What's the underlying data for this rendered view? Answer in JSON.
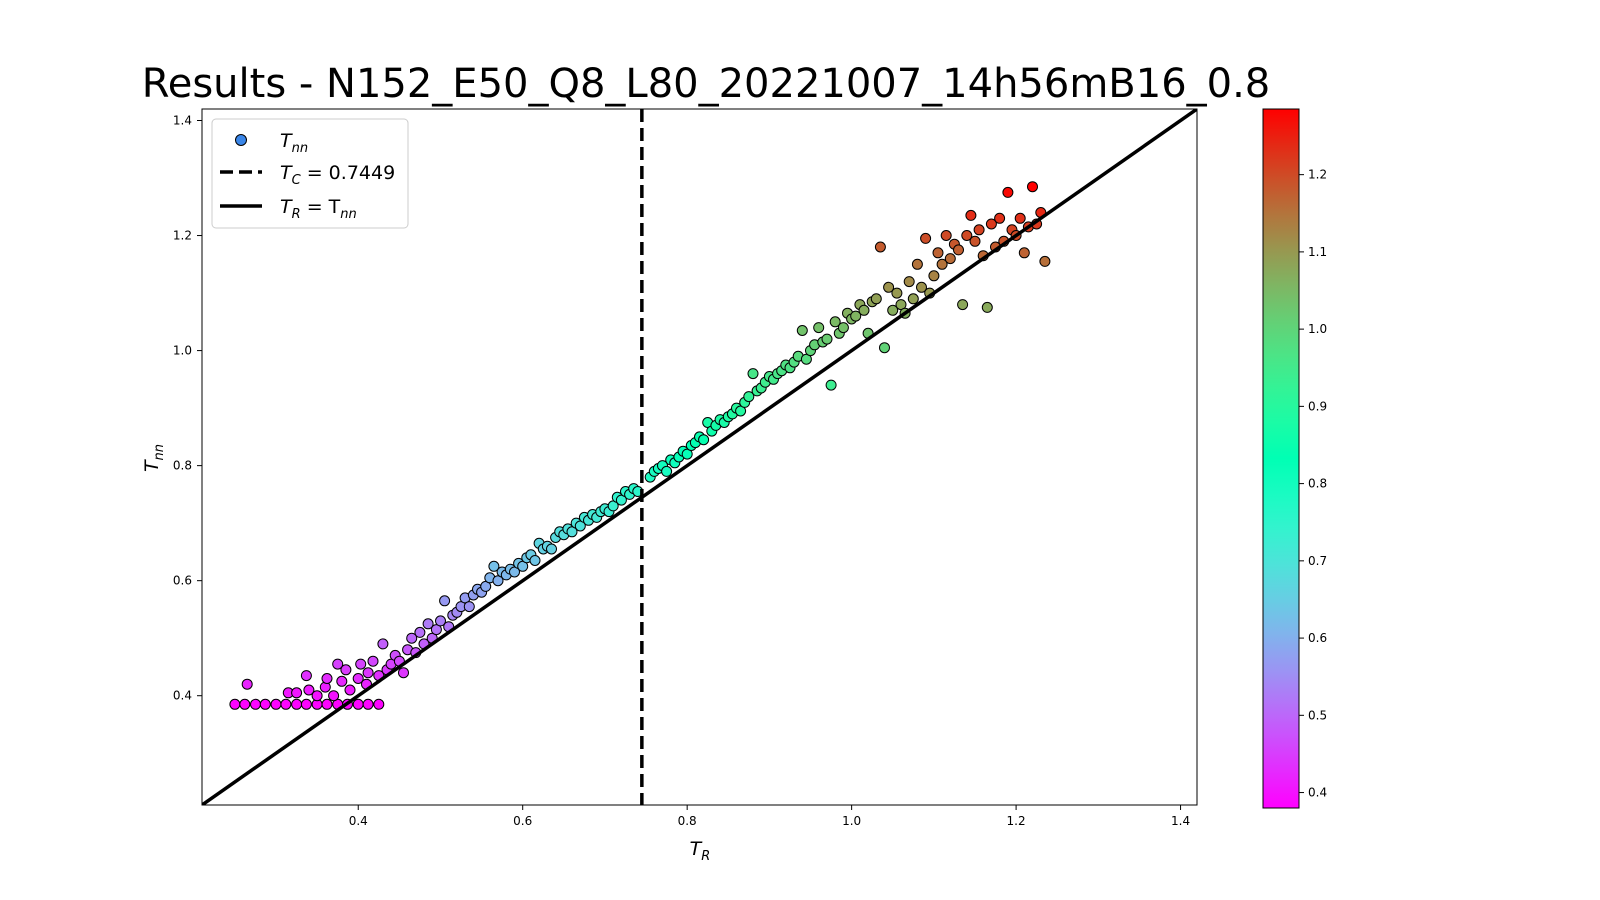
{
  "chart_data": {
    "type": "scatter",
    "title": "Results - N152_E50_Q8_L80_20221007_14h56mB16_0.8",
    "xlabel": "T_R",
    "ylabel": "T_nn",
    "xlim": [
      0.21,
      1.42
    ],
    "ylim": [
      0.21,
      1.42
    ],
    "x_ticks": [
      "0.4",
      "0.6",
      "0.8",
      "1.0",
      "1.2",
      "1.4"
    ],
    "y_ticks": [
      "0.4",
      "0.6",
      "0.8",
      "1.0",
      "1.2",
      "1.4"
    ],
    "colorbar": {
      "colormap": "rainbow",
      "range": [
        0.38,
        1.285
      ],
      "ticks": [
        "0.4",
        "0.5",
        "0.6",
        "0.7",
        "0.8",
        "0.9",
        "1.0",
        "1.1",
        "1.2"
      ]
    },
    "legend": {
      "placement": "top-left",
      "entries": [
        {
          "label_main": "T",
          "label_sub": "nn",
          "label_rest": "",
          "marker": "circle",
          "color": "#3a86e8"
        },
        {
          "label_main": "T",
          "label_sub": "C",
          "label_rest": " = 0.7449",
          "marker": "dashed-line",
          "color": "#000000"
        },
        {
          "label_main": "T",
          "label_sub": "R",
          "label_rest": " = T",
          "label_sub2": "nn",
          "marker": "solid-line",
          "color": "#000000"
        }
      ]
    },
    "critical_temperature": 0.7449,
    "reference_line": "T_R = T_nn",
    "series": [
      {
        "points": [
          [
            0.25,
            0.385
          ],
          [
            0.262,
            0.385
          ],
          [
            0.275,
            0.385
          ],
          [
            0.287,
            0.385
          ],
          [
            0.3,
            0.385
          ],
          [
            0.312,
            0.385
          ],
          [
            0.325,
            0.385
          ],
          [
            0.337,
            0.385
          ],
          [
            0.35,
            0.385
          ],
          [
            0.362,
            0.385
          ],
          [
            0.375,
            0.385
          ],
          [
            0.387,
            0.385
          ],
          [
            0.4,
            0.385
          ],
          [
            0.412,
            0.385
          ],
          [
            0.425,
            0.385
          ],
          [
            0.265,
            0.42
          ],
          [
            0.315,
            0.405
          ],
          [
            0.325,
            0.405
          ],
          [
            0.337,
            0.435
          ],
          [
            0.34,
            0.41
          ],
          [
            0.35,
            0.4
          ],
          [
            0.36,
            0.415
          ],
          [
            0.362,
            0.43
          ],
          [
            0.37,
            0.4
          ],
          [
            0.375,
            0.455
          ],
          [
            0.38,
            0.425
          ],
          [
            0.385,
            0.445
          ],
          [
            0.39,
            0.41
          ],
          [
            0.4,
            0.43
          ],
          [
            0.403,
            0.455
          ],
          [
            0.41,
            0.42
          ],
          [
            0.412,
            0.44
          ],
          [
            0.418,
            0.46
          ],
          [
            0.425,
            0.435
          ],
          [
            0.43,
            0.49
          ],
          [
            0.435,
            0.445
          ],
          [
            0.44,
            0.455
          ],
          [
            0.445,
            0.47
          ],
          [
            0.45,
            0.46
          ],
          [
            0.455,
            0.44
          ],
          [
            0.46,
            0.48
          ],
          [
            0.465,
            0.5
          ],
          [
            0.47,
            0.475
          ],
          [
            0.475,
            0.51
          ],
          [
            0.48,
            0.49
          ],
          [
            0.485,
            0.525
          ],
          [
            0.49,
            0.5
          ],
          [
            0.495,
            0.515
          ],
          [
            0.5,
            0.53
          ],
          [
            0.505,
            0.565
          ],
          [
            0.51,
            0.52
          ],
          [
            0.515,
            0.54
          ],
          [
            0.52,
            0.545
          ],
          [
            0.525,
            0.555
          ],
          [
            0.53,
            0.57
          ],
          [
            0.535,
            0.555
          ],
          [
            0.54,
            0.575
          ],
          [
            0.545,
            0.585
          ],
          [
            0.55,
            0.58
          ],
          [
            0.555,
            0.59
          ],
          [
            0.56,
            0.605
          ],
          [
            0.565,
            0.625
          ],
          [
            0.57,
            0.6
          ],
          [
            0.575,
            0.615
          ],
          [
            0.58,
            0.61
          ],
          [
            0.585,
            0.62
          ],
          [
            0.59,
            0.615
          ],
          [
            0.595,
            0.63
          ],
          [
            0.6,
            0.625
          ],
          [
            0.605,
            0.64
          ],
          [
            0.61,
            0.645
          ],
          [
            0.615,
            0.635
          ],
          [
            0.62,
            0.665
          ],
          [
            0.625,
            0.655
          ],
          [
            0.63,
            0.66
          ],
          [
            0.635,
            0.655
          ],
          [
            0.64,
            0.675
          ],
          [
            0.645,
            0.685
          ],
          [
            0.65,
            0.68
          ],
          [
            0.655,
            0.69
          ],
          [
            0.66,
            0.685
          ],
          [
            0.665,
            0.7
          ],
          [
            0.67,
            0.695
          ],
          [
            0.675,
            0.71
          ],
          [
            0.68,
            0.705
          ],
          [
            0.685,
            0.715
          ],
          [
            0.69,
            0.71
          ],
          [
            0.695,
            0.72
          ],
          [
            0.7,
            0.725
          ],
          [
            0.705,
            0.72
          ],
          [
            0.71,
            0.73
          ],
          [
            0.715,
            0.745
          ],
          [
            0.72,
            0.74
          ],
          [
            0.725,
            0.755
          ],
          [
            0.73,
            0.75
          ],
          [
            0.735,
            0.76
          ],
          [
            0.74,
            0.755
          ],
          [
            0.755,
            0.78
          ],
          [
            0.76,
            0.79
          ],
          [
            0.765,
            0.795
          ],
          [
            0.77,
            0.8
          ],
          [
            0.775,
            0.79
          ],
          [
            0.78,
            0.81
          ],
          [
            0.785,
            0.805
          ],
          [
            0.79,
            0.815
          ],
          [
            0.795,
            0.825
          ],
          [
            0.8,
            0.82
          ],
          [
            0.805,
            0.835
          ],
          [
            0.81,
            0.84
          ],
          [
            0.815,
            0.85
          ],
          [
            0.82,
            0.845
          ],
          [
            0.825,
            0.875
          ],
          [
            0.83,
            0.86
          ],
          [
            0.835,
            0.87
          ],
          [
            0.84,
            0.88
          ],
          [
            0.845,
            0.875
          ],
          [
            0.85,
            0.885
          ],
          [
            0.855,
            0.89
          ],
          [
            0.86,
            0.9
          ],
          [
            0.865,
            0.895
          ],
          [
            0.87,
            0.91
          ],
          [
            0.875,
            0.92
          ],
          [
            0.88,
            0.96
          ],
          [
            0.885,
            0.93
          ],
          [
            0.89,
            0.935
          ],
          [
            0.895,
            0.945
          ],
          [
            0.9,
            0.955
          ],
          [
            0.905,
            0.95
          ],
          [
            0.91,
            0.96
          ],
          [
            0.915,
            0.965
          ],
          [
            0.92,
            0.975
          ],
          [
            0.925,
            0.97
          ],
          [
            0.93,
            0.98
          ],
          [
            0.935,
            0.99
          ],
          [
            0.94,
            1.035
          ],
          [
            0.945,
            0.985
          ],
          [
            0.95,
            1.0
          ],
          [
            0.955,
            1.01
          ],
          [
            0.96,
            1.04
          ],
          [
            0.965,
            1.015
          ],
          [
            0.97,
            1.02
          ],
          [
            0.975,
            0.94
          ],
          [
            0.98,
            1.05
          ],
          [
            0.985,
            1.03
          ],
          [
            0.99,
            1.04
          ],
          [
            0.995,
            1.065
          ],
          [
            1.0,
            1.055
          ],
          [
            1.005,
            1.06
          ],
          [
            1.01,
            1.08
          ],
          [
            1.015,
            1.07
          ],
          [
            1.02,
            1.03
          ],
          [
            1.025,
            1.085
          ],
          [
            1.03,
            1.09
          ],
          [
            1.035,
            1.18
          ],
          [
            1.04,
            1.005
          ],
          [
            1.045,
            1.11
          ],
          [
            1.05,
            1.07
          ],
          [
            1.055,
            1.1
          ],
          [
            1.06,
            1.08
          ],
          [
            1.065,
            1.065
          ],
          [
            1.07,
            1.12
          ],
          [
            1.075,
            1.09
          ],
          [
            1.08,
            1.15
          ],
          [
            1.085,
            1.11
          ],
          [
            1.09,
            1.195
          ],
          [
            1.095,
            1.1
          ],
          [
            1.1,
            1.13
          ],
          [
            1.105,
            1.17
          ],
          [
            1.11,
            1.15
          ],
          [
            1.115,
            1.2
          ],
          [
            1.12,
            1.16
          ],
          [
            1.125,
            1.185
          ],
          [
            1.13,
            1.175
          ],
          [
            1.135,
            1.08
          ],
          [
            1.14,
            1.2
          ],
          [
            1.145,
            1.235
          ],
          [
            1.15,
            1.19
          ],
          [
            1.155,
            1.21
          ],
          [
            1.16,
            1.165
          ],
          [
            1.165,
            1.075
          ],
          [
            1.17,
            1.22
          ],
          [
            1.175,
            1.18
          ],
          [
            1.18,
            1.23
          ],
          [
            1.185,
            1.19
          ],
          [
            1.19,
            1.275
          ],
          [
            1.195,
            1.21
          ],
          [
            1.2,
            1.2
          ],
          [
            1.205,
            1.23
          ],
          [
            1.21,
            1.17
          ],
          [
            1.215,
            1.215
          ],
          [
            1.22,
            1.285
          ],
          [
            1.225,
            1.22
          ],
          [
            1.23,
            1.24
          ],
          [
            1.235,
            1.155
          ]
        ]
      }
    ]
  }
}
